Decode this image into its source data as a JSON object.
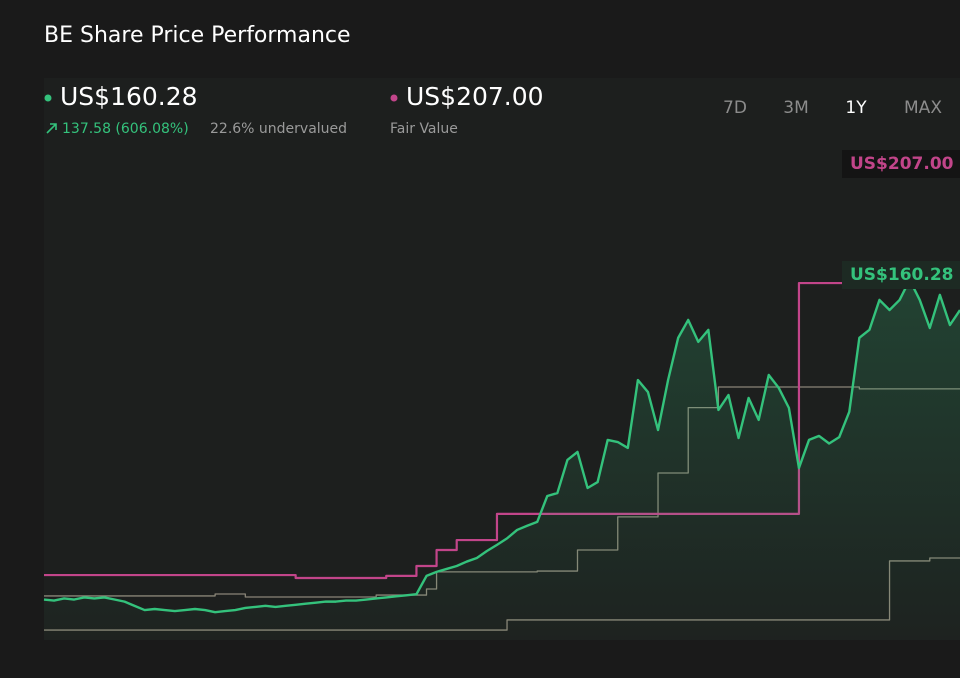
{
  "header": {
    "title": "BE Share Price Performance",
    "price": "US$160.28",
    "change": "137.58 (606.08%)",
    "valuation": "22.6% undervalued",
    "fair_value": "US$207.00",
    "fair_value_caption": "Fair Value"
  },
  "ranges": {
    "options": [
      "7D",
      "3M",
      "1Y",
      "MAX"
    ],
    "selected": "1Y"
  },
  "chart_data": {
    "type": "line",
    "ylim": [
      0,
      240
    ],
    "series": [
      {
        "color": "#8a8577",
        "step": true,
        "values": [
          8.5,
          8.5,
          8.5,
          8.5,
          8.5,
          8.5,
          8.5,
          8.5,
          8.5,
          8.5,
          8.5,
          8.5,
          8.5,
          8.5,
          8.5,
          8.5,
          8.5,
          8.5,
          8.5,
          8.5,
          8.5,
          8.5,
          8.5,
          8.5,
          8.5,
          8.5,
          8.5,
          8.5,
          8.5,
          8.5,
          8.5,
          8.5,
          8.5,
          8.5,
          8.5,
          8.5,
          8.5,
          8.5,
          8.5,
          8.5,
          8.5,
          8.5,
          8.5,
          8.5,
          8.5,
          8.5,
          13.3,
          13.3,
          13.3,
          13.3,
          13.3,
          13.3,
          13.3,
          13.3,
          13.3,
          13.3,
          13.3,
          13.3,
          13.3,
          13.3,
          13.3,
          13.3,
          13.3,
          13.3,
          13.3,
          13.3,
          13.3,
          13.3,
          13.3,
          13.3,
          13.3,
          13.3,
          13.3,
          13.3,
          13.3,
          13.3,
          13.3,
          13.3,
          13.3,
          13.3,
          13.3,
          13.3,
          13.3,
          13.3,
          41.3,
          41.3,
          41.3,
          41.3,
          42.7,
          42.7,
          42.7,
          42.7
        ]
      },
      {
        "color": "#8a8577",
        "step": true,
        "values": [
          24.7,
          24.7,
          24.7,
          24.7,
          24.7,
          24.7,
          24.7,
          24.7,
          24.7,
          24.7,
          24.7,
          24.7,
          24.7,
          24.7,
          24.7,
          24.7,
          24.7,
          25.6,
          25.6,
          25.6,
          24.2,
          24.2,
          24.2,
          24.2,
          24.2,
          24.2,
          24.2,
          24.2,
          24.2,
          24.2,
          24.2,
          24.2,
          24.2,
          25.1,
          25.1,
          25.1,
          25.1,
          25.1,
          28,
          36.1,
          36.1,
          36.1,
          36.1,
          36.1,
          36.1,
          36.1,
          36.1,
          36.1,
          36.1,
          36.5,
          36.5,
          36.5,
          36.5,
          46.5,
          46.5,
          46.5,
          46.5,
          62.2,
          62.2,
          62.2,
          62.2,
          83,
          83,
          83,
          114,
          114,
          114,
          123.8,
          123.8,
          123.8,
          123.8,
          123.8,
          123.8,
          123.8,
          123.8,
          123.8,
          123.8,
          123.8,
          123.8,
          123.8,
          123.8,
          122.9,
          122.9,
          122.9,
          122.9,
          122.9,
          122.9,
          122.9,
          122.9,
          122.9,
          122.9,
          122.9
        ]
      },
      {
        "name": "Fair Value",
        "color": "#c2458a",
        "step": true,
        "values": [
          34.6,
          34.6,
          34.6,
          34.6,
          34.6,
          34.6,
          34.6,
          34.6,
          34.6,
          34.6,
          34.6,
          34.6,
          34.6,
          34.6,
          34.6,
          34.6,
          34.6,
          34.6,
          34.6,
          34.6,
          34.6,
          34.6,
          34.6,
          34.6,
          34.6,
          33.2,
          33.2,
          33.2,
          33.2,
          33.2,
          33.2,
          33.2,
          33.2,
          33.2,
          34.2,
          34.2,
          34.2,
          38.9,
          38.9,
          46.5,
          46.5,
          51.2,
          51.2,
          51.2,
          51.2,
          63.6,
          63.6,
          63.6,
          63.6,
          63.6,
          63.6,
          63.6,
          63.6,
          63.6,
          63.6,
          63.6,
          63.6,
          63.6,
          63.6,
          63.6,
          63.6,
          63.6,
          63.6,
          63.6,
          63.6,
          63.6,
          63.6,
          63.6,
          63.6,
          63.6,
          63.6,
          63.6,
          63.6,
          63.6,
          63.6,
          173.1,
          173.1,
          173.1,
          173.1,
          173.1,
          null,
          null,
          null,
          null,
          null,
          null,
          null,
          null,
          null,
          null,
          null,
          null
        ]
      },
      {
        "color": "#34c27c",
        "area": true,
        "values": [
          23,
          22.5,
          23.5,
          23,
          24,
          23.5,
          24,
          23,
          22,
          20,
          18,
          18.5,
          18,
          17.5,
          18,
          18.5,
          18,
          17,
          17.5,
          18,
          19,
          19.5,
          20,
          19.5,
          20,
          20.5,
          21,
          21.5,
          22,
          22,
          22.5,
          22.5,
          23,
          23.5,
          24,
          24.5,
          25,
          25.5,
          34.2,
          36.1,
          37.5,
          38.9,
          41,
          42.7,
          46,
          48.9,
          52,
          56,
          58,
          59.8,
          72.1,
          73.5,
          89.2,
          93.0,
          75.9,
          78.7,
          98.7,
          97.7,
          94.9,
          127.1,
          121.4,
          103.4,
          127.1,
          147.1,
          155.6,
          145.2,
          150.9,
          112.9,
          120,
          99.6,
          118.6,
          108.2,
          129.5,
          123.3,
          113.9,
          85.4,
          98.7,
          100.6,
          97,
          100,
          112,
          147.1,
          150.9,
          165.1,
          160.3,
          165.1,
          174.6,
          165.1,
          151.8,
          167.5,
          153.2,
          160.28
        ]
      }
    ]
  }
}
